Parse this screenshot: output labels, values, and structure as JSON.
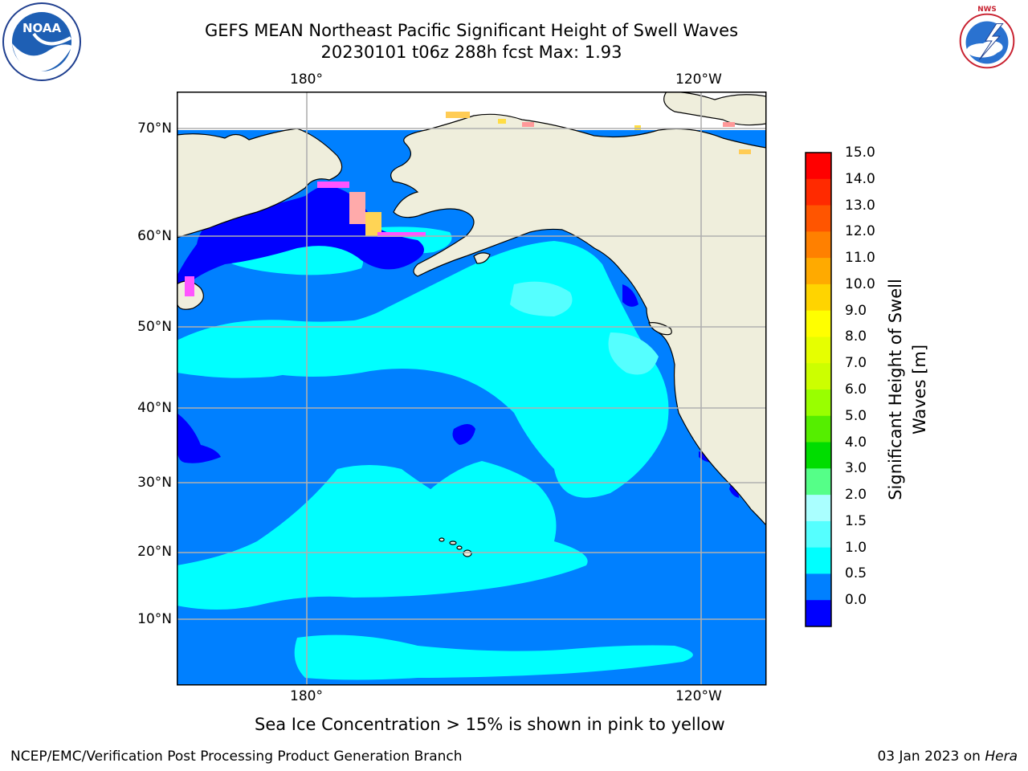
{
  "header": {
    "title_line1": "GEFS MEAN Northeast Pacific Significant Height of Swell Waves",
    "title_line2": "20230101 t06z 288h fcst   Max: 1.93"
  },
  "map": {
    "lon_labels_top": [
      "180°",
      "120°W"
    ],
    "lon_labels_bottom": [
      "180°",
      "120°W"
    ],
    "lat_labels": [
      "70°N",
      "60°N",
      "50°N",
      "40°N",
      "30°N",
      "20°N",
      "10°N"
    ]
  },
  "colorbar": {
    "label": "Significant Height of Swell\nWaves [m]",
    "ticks": [
      "15.0",
      "14.0",
      "13.0",
      "12.0",
      "11.0",
      "10.0",
      "9.0",
      "8.0",
      "7.0",
      "6.0",
      "5.0",
      "4.0",
      "3.0",
      "2.0",
      "1.5",
      "1.0",
      "0.5",
      "0.0"
    ],
    "colors": [
      "#ff0000",
      "#ff2a00",
      "#ff5500",
      "#ff8000",
      "#ffaa00",
      "#ffd400",
      "#ffff00",
      "#e6ff00",
      "#ccff00",
      "#99ff00",
      "#55ee00",
      "#00dd00",
      "#55ff88",
      "#aaffff",
      "#55ffff",
      "#00ffff",
      "#0080ff",
      "#0000ff"
    ]
  },
  "caption": "Sea Ice Concentration > 15% is shown in pink to yellow",
  "footer": {
    "credit": "NCEP/EMC/Verification Post Processing Product Generation Branch",
    "date_prefix": "03 Jan 2023 on ",
    "machine": "Hera"
  },
  "logos": {
    "left_icon": "noaa-logo",
    "left_text": "NOAA",
    "right_icon": "nws-logo",
    "right_text": "NATIONAL WEATHER SERVICE"
  },
  "colors": {
    "land": "#efeedc",
    "ocean_1_0_1_5": "#0080ff",
    "ocean_1_5_2_0": "#00ffff",
    "ocean_0_0_0_5": "#0000ff",
    "grid": "#b0b0b0"
  }
}
